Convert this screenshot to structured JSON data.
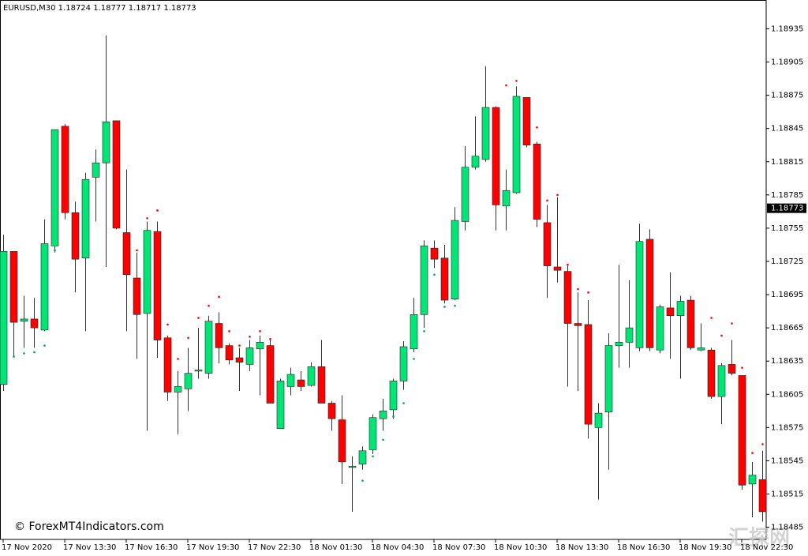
{
  "chart_data": {
    "type": "candlestick",
    "symbol": "EURUSD,M30",
    "header_values": [
      1.18724,
      1.18777,
      1.18717,
      1.18773
    ],
    "watermark": "© ForexMT4Indicators.com",
    "corner_mark": "汇探网",
    "categories": [
      "17 Nov 2020",
      null,
      null,
      null,
      null,
      null,
      "17 Nov 13:30",
      null,
      null,
      null,
      null,
      null,
      "17 Nov 16:30",
      null,
      null,
      null,
      null,
      null,
      "17 Nov 19:30",
      null,
      null,
      null,
      null,
      null,
      "17 Nov 22:30",
      null,
      null,
      null,
      null,
      null,
      "18 Nov 01:30",
      null,
      null,
      null,
      null,
      null,
      "18 Nov 04:30",
      null,
      null,
      null,
      null,
      null,
      "18 Nov 07:30",
      null,
      null,
      null,
      null,
      null,
      "18 Nov 10:30",
      null,
      null,
      null,
      null,
      null,
      "18 Nov 13:30",
      null,
      null,
      null,
      null,
      null,
      "18 Nov 16:30",
      null,
      null,
      null,
      null,
      null,
      "18 Nov 19:30",
      null,
      null,
      null,
      null,
      null,
      "18 Nov 22:30",
      null,
      null
    ],
    "open": [
      1.18614,
      1.18734,
      1.18671,
      1.18673,
      1.18663,
      1.18739,
      1.18847,
      1.18769,
      1.18728,
      1.18801,
      1.18814,
      1.18852,
      1.18751,
      1.1871,
      1.18678,
      1.18752,
      1.18656,
      1.18607,
      1.1861,
      1.18626,
      1.18624,
      1.18669,
      1.18649,
      1.18638,
      1.18632,
      1.18646,
      1.18649,
      1.18574,
      1.18612,
      1.18618,
      1.18613,
      1.1863,
      1.18597,
      1.18582,
      1.18539,
      1.18542,
      1.18555,
      1.18583,
      1.18591,
      1.18617,
      1.18646,
      1.18677,
      1.18737,
      1.18728,
      1.18691,
      1.18761,
      1.1881,
      1.18817,
      1.18864,
      1.18775,
      1.18787,
      1.18873,
      1.18831,
      1.1876,
      1.1872,
      1.18716,
      1.18669,
      1.18668,
      1.18575,
      1.18589,
      1.18649,
      1.18652,
      1.18647,
      1.18745,
      1.18645,
      1.18683,
      1.18676,
      1.1869,
      1.18645,
      1.18645,
      1.18603,
      1.18632,
      1.18622,
      1.18524,
      1.18528
    ],
    "high": [
      1.18749,
      1.18734,
      1.18694,
      1.18692,
      1.18763,
      1.18844,
      1.18849,
      1.18779,
      1.18805,
      1.18826,
      1.18929,
      1.18852,
      1.18808,
      1.18733,
      1.18761,
      1.18761,
      1.18658,
      1.18626,
      1.18647,
      1.18665,
      1.18676,
      1.18679,
      1.18651,
      1.18647,
      1.18654,
      1.18658,
      1.18654,
      1.18619,
      1.18629,
      1.18626,
      1.18634,
      1.18654,
      1.18599,
      1.18604,
      1.18549,
      1.18558,
      1.18587,
      1.18601,
      1.18619,
      1.18653,
      1.18692,
      1.18744,
      1.18744,
      1.1874,
      1.18774,
      1.18829,
      1.18856,
      1.18901,
      1.18865,
      1.18808,
      1.18883,
      1.18873,
      1.18833,
      1.18776,
      1.18783,
      1.18721,
      1.18697,
      1.1869,
      1.18597,
      1.1866,
      1.18722,
      1.18708,
      1.18759,
      1.18754,
      1.18686,
      1.18715,
      1.18694,
      1.18694,
      1.18669,
      1.18647,
      1.18633,
      1.18654,
      1.18622,
      1.18544,
      1.18554
    ],
    "low": [
      1.18608,
      1.18639,
      1.18647,
      1.18647,
      1.18662,
      1.18733,
      1.18763,
      1.18697,
      1.18662,
      1.18761,
      1.1872,
      1.18754,
      1.18662,
      1.18637,
      1.18572,
      1.18638,
      1.18599,
      1.18569,
      1.1859,
      1.18619,
      1.18619,
      1.18633,
      1.18632,
      1.18608,
      1.18626,
      1.18604,
      1.18597,
      1.18574,
      1.18604,
      1.18608,
      1.18612,
      1.18597,
      1.18572,
      1.18524,
      1.18499,
      1.18537,
      1.18551,
      1.18572,
      1.18583,
      1.18609,
      1.18643,
      1.18665,
      1.18719,
      1.18687,
      1.1869,
      1.18753,
      1.18808,
      1.18815,
      1.18753,
      1.18753,
      1.18786,
      1.18828,
      1.18756,
      1.18692,
      1.18706,
      1.18612,
      1.18608,
      1.18565,
      1.1851,
      1.18537,
      1.18629,
      1.18629,
      1.18644,
      1.18644,
      1.18642,
      1.18637,
      1.18619,
      1.18645,
      1.18644,
      1.18601,
      1.18578,
      1.18622,
      1.18519,
      1.18494,
      1.1849
    ],
    "close": [
      1.18734,
      1.1867,
      1.18673,
      1.18665,
      1.18741,
      1.18844,
      1.18769,
      1.18727,
      1.18799,
      1.18814,
      1.18851,
      1.18755,
      1.18713,
      1.18677,
      1.18753,
      1.18654,
      1.18607,
      1.18612,
      1.18624,
      1.18627,
      1.18671,
      1.18647,
      1.18636,
      1.18634,
      1.18647,
      1.18652,
      1.18597,
      1.18617,
      1.18623,
      1.18612,
      1.1863,
      1.18597,
      1.18583,
      1.18544,
      1.1854,
      1.18554,
      1.18584,
      1.1859,
      1.18617,
      1.18648,
      1.18677,
      1.18739,
      1.18727,
      1.1869,
      1.18762,
      1.1881,
      1.1882,
      1.18864,
      1.18776,
      1.18789,
      1.18874,
      1.1883,
      1.18763,
      1.18721,
      1.18717,
      1.18669,
      1.18667,
      1.18578,
      1.18588,
      1.18649,
      1.18652,
      1.18665,
      1.18743,
      1.18647,
      1.18684,
      1.18676,
      1.18689,
      1.18647,
      1.18647,
      1.18603,
      1.18631,
      1.18624,
      1.18523,
      1.18532,
      1.18499
    ],
    "up_color": "#00e676",
    "down_color": "#ff0000",
    "lower_dots": [
      null,
      1.18639,
      1.18642,
      1.18643,
      1.18649,
      1.18735,
      null,
      null,
      null,
      null,
      null,
      null,
      null,
      null,
      null,
      null,
      null,
      null,
      null,
      null,
      null,
      null,
      null,
      null,
      null,
      null,
      null,
      null,
      null,
      null,
      null,
      null,
      null,
      null,
      null,
      1.18527,
      1.18549,
      1.18564,
      1.18585,
      1.18597,
      1.18637,
      1.18662,
      1.18713,
      1.18684,
      1.18685,
      null,
      null,
      null,
      null,
      null,
      null,
      null,
      null,
      null,
      null,
      null,
      null,
      null,
      null,
      null,
      null,
      null,
      null,
      null,
      null,
      null,
      null,
      null,
      null,
      null,
      null,
      null,
      null,
      null,
      null
    ],
    "upper_dots": [
      null,
      null,
      null,
      null,
      null,
      null,
      null,
      null,
      null,
      null,
      null,
      null,
      null,
      1.18735,
      1.18764,
      1.18771,
      1.18668,
      1.18637,
      1.18656,
      1.18674,
      1.18685,
      1.18693,
      1.18662,
      1.18649,
      1.18657,
      1.18662,
      1.18655,
      null,
      null,
      null,
      null,
      null,
      null,
      null,
      null,
      null,
      null,
      null,
      null,
      null,
      null,
      null,
      null,
      null,
      null,
      null,
      null,
      null,
      null,
      1.18884,
      1.18888,
      null,
      1.18846,
      1.1878,
      1.18785,
      1.18722,
      1.187,
      1.18697,
      null,
      null,
      null,
      null,
      null,
      null,
      null,
      null,
      null,
      null,
      null,
      1.18674,
      1.18658,
      1.18669,
      1.18629,
      1.18552,
      1.1856
    ],
    "lower_dot_color": "#00a651",
    "upper_dot_color": "#ff0000",
    "current_price": 1.18773,
    "ylim": [
      1.18474,
      1.18961
    ],
    "yticks": [
      1.18935,
      1.18905,
      1.18875,
      1.18845,
      1.18815,
      1.18785,
      1.18755,
      1.18725,
      1.18695,
      1.18665,
      1.18635,
      1.18605,
      1.18575,
      1.18545,
      1.18515,
      1.18485
    ],
    "grid": false
  }
}
